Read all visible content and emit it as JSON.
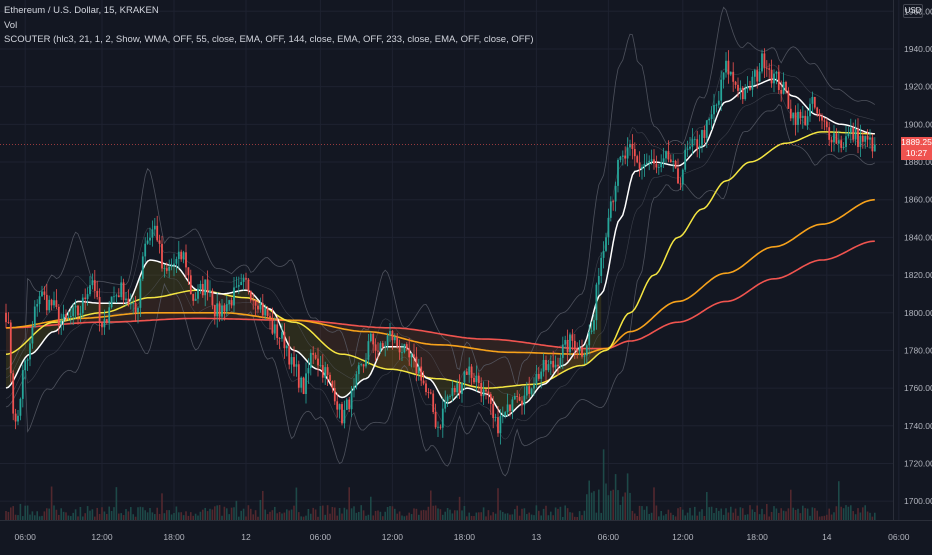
{
  "header": {
    "symbol_line": "Ethereum / U.S. Dollar, 15, KRAKEN",
    "indicator_vol": "Vol",
    "indicator_scouter": "SCOUTER (hlc3, 21, 1, 2, Show, WMA, OFF, 55, close, EMA, OFF, 144, close, EMA, OFF, 233, close, EMA, OFF, close, OFF)"
  },
  "currency_button": "USD",
  "last_price": {
    "value": "1889.25",
    "countdown": "10:27",
    "color": "#ef5350"
  },
  "colors": {
    "background": "#131722",
    "grid": "#1e2230",
    "bull": "#26a69a",
    "bear": "#ef5350",
    "wma": "#ffffff",
    "ema55": "#f5e642",
    "ema144": "#f7a21b",
    "ema233": "#f0544f",
    "band": "#5d606b"
  },
  "chart_data": {
    "type": "candlestick",
    "y_ticks": [
      "1960.00",
      "1940.00",
      "1920.00",
      "1900.00",
      "1880.00",
      "1860.00",
      "1840.00",
      "1820.00",
      "1800.00",
      "1780.00",
      "1760.00",
      "1740.00",
      "1720.00",
      "1700.00"
    ],
    "ylim": [
      1690,
      1966
    ],
    "x_ticks": [
      {
        "label": "06:00",
        "bar": 8
      },
      {
        "label": "12:00",
        "bar": 40
      },
      {
        "label": "18:00",
        "bar": 70
      },
      {
        "label": "12",
        "bar": 100
      },
      {
        "label": "06:00",
        "bar": 131
      },
      {
        "label": "12:00",
        "bar": 161
      },
      {
        "label": "18:00",
        "bar": 191
      },
      {
        "label": "13",
        "bar": 221
      },
      {
        "label": "06:00",
        "bar": 251
      },
      {
        "label": "12:00",
        "bar": 282
      },
      {
        "label": "18:00",
        "bar": 313
      },
      {
        "label": "14",
        "bar": 342
      },
      {
        "label": "06:00",
        "bar": 372
      }
    ],
    "bar_count": 400,
    "close_keys": [
      [
        0,
        1800
      ],
      [
        4,
        1740
      ],
      [
        8,
        1772
      ],
      [
        14,
        1810
      ],
      [
        18,
        1805
      ],
      [
        24,
        1795
      ],
      [
        30,
        1800
      ],
      [
        36,
        1818
      ],
      [
        40,
        1790
      ],
      [
        44,
        1808
      ],
      [
        48,
        1812
      ],
      [
        54,
        1800
      ],
      [
        58,
        1838
      ],
      [
        62,
        1845
      ],
      [
        66,
        1820
      ],
      [
        70,
        1826
      ],
      [
        74,
        1830
      ],
      [
        78,
        1808
      ],
      [
        84,
        1815
      ],
      [
        88,
        1800
      ],
      [
        92,
        1805
      ],
      [
        96,
        1810
      ],
      [
        100,
        1815
      ],
      [
        104,
        1808
      ],
      [
        108,
        1800
      ],
      [
        112,
        1790
      ],
      [
        116,
        1785
      ],
      [
        120,
        1770
      ],
      [
        124,
        1760
      ],
      [
        128,
        1780
      ],
      [
        132,
        1770
      ],
      [
        136,
        1760
      ],
      [
        140,
        1745
      ],
      [
        144,
        1755
      ],
      [
        148,
        1770
      ],
      [
        152,
        1785
      ],
      [
        156,
        1780
      ],
      [
        160,
        1788
      ],
      [
        164,
        1782
      ],
      [
        168,
        1775
      ],
      [
        172,
        1770
      ],
      [
        176,
        1755
      ],
      [
        180,
        1740
      ],
      [
        184,
        1755
      ],
      [
        188,
        1760
      ],
      [
        192,
        1770
      ],
      [
        196,
        1765
      ],
      [
        200,
        1755
      ],
      [
        204,
        1740
      ],
      [
        208,
        1745
      ],
      [
        212,
        1760
      ],
      [
        216,
        1755
      ],
      [
        220,
        1765
      ],
      [
        224,
        1770
      ],
      [
        228,
        1772
      ],
      [
        232,
        1780
      ],
      [
        236,
        1785
      ],
      [
        240,
        1780
      ],
      [
        244,
        1790
      ],
      [
        248,
        1830
      ],
      [
        252,
        1860
      ],
      [
        256,
        1880
      ],
      [
        260,
        1885
      ],
      [
        264,
        1878
      ],
      [
        268,
        1880
      ],
      [
        272,
        1875
      ],
      [
        276,
        1882
      ],
      [
        280,
        1870
      ],
      [
        284,
        1885
      ],
      [
        288,
        1890
      ],
      [
        292,
        1898
      ],
      [
        296,
        1910
      ],
      [
        300,
        1930
      ],
      [
        304,
        1922
      ],
      [
        308,
        1915
      ],
      [
        312,
        1925
      ],
      [
        316,
        1935
      ],
      [
        320,
        1925
      ],
      [
        324,
        1918
      ],
      [
        328,
        1905
      ],
      [
        332,
        1902
      ],
      [
        336,
        1910
      ],
      [
        340,
        1900
      ],
      [
        344,
        1895
      ],
      [
        348,
        1890
      ],
      [
        352,
        1895
      ],
      [
        356,
        1892
      ],
      [
        360,
        1890
      ],
      [
        362,
        1889.25
      ]
    ],
    "wma_keys": [
      [
        0,
        1760
      ],
      [
        10,
        1778
      ],
      [
        20,
        1790
      ],
      [
        30,
        1806
      ],
      [
        40,
        1805
      ],
      [
        50,
        1805
      ],
      [
        60,
        1828
      ],
      [
        70,
        1825
      ],
      [
        80,
        1812
      ],
      [
        90,
        1810
      ],
      [
        100,
        1812
      ],
      [
        110,
        1802
      ],
      [
        120,
        1780
      ],
      [
        130,
        1770
      ],
      [
        140,
        1755
      ],
      [
        150,
        1765
      ],
      [
        158,
        1782
      ],
      [
        166,
        1782
      ],
      [
        176,
        1765
      ],
      [
        184,
        1752
      ],
      [
        192,
        1760
      ],
      [
        200,
        1757
      ],
      [
        208,
        1745
      ],
      [
        216,
        1752
      ],
      [
        224,
        1762
      ],
      [
        232,
        1772
      ],
      [
        240,
        1782
      ],
      [
        248,
        1810
      ],
      [
        256,
        1850
      ],
      [
        262,
        1875
      ],
      [
        270,
        1880
      ],
      [
        280,
        1878
      ],
      [
        290,
        1888
      ],
      [
        300,
        1912
      ],
      [
        310,
        1920
      ],
      [
        320,
        1924
      ],
      [
        328,
        1915
      ],
      [
        338,
        1905
      ],
      [
        348,
        1900
      ],
      [
        362,
        1895
      ]
    ],
    "ema55_keys": [
      [
        0,
        1778
      ],
      [
        20,
        1795
      ],
      [
        40,
        1800
      ],
      [
        60,
        1808
      ],
      [
        80,
        1812
      ],
      [
        100,
        1808
      ],
      [
        120,
        1795
      ],
      [
        140,
        1778
      ],
      [
        160,
        1770
      ],
      [
        180,
        1765
      ],
      [
        200,
        1760
      ],
      [
        220,
        1762
      ],
      [
        240,
        1772
      ],
      [
        250,
        1780
      ],
      [
        260,
        1800
      ],
      [
        270,
        1820
      ],
      [
        280,
        1840
      ],
      [
        290,
        1855
      ],
      [
        300,
        1870
      ],
      [
        310,
        1880
      ],
      [
        325,
        1890
      ],
      [
        340,
        1896
      ],
      [
        362,
        1895
      ]
    ],
    "ema144_keys": [
      [
        0,
        1792
      ],
      [
        30,
        1797
      ],
      [
        60,
        1800
      ],
      [
        90,
        1800
      ],
      [
        120,
        1796
      ],
      [
        150,
        1790
      ],
      [
        180,
        1783
      ],
      [
        210,
        1779
      ],
      [
        240,
        1778
      ],
      [
        250,
        1781
      ],
      [
        260,
        1790
      ],
      [
        280,
        1806
      ],
      [
        300,
        1821
      ],
      [
        320,
        1835
      ],
      [
        340,
        1847
      ],
      [
        362,
        1860
      ]
    ],
    "ema233_keys": [
      [
        0,
        1792
      ],
      [
        40,
        1795
      ],
      [
        80,
        1797
      ],
      [
        120,
        1796
      ],
      [
        160,
        1792
      ],
      [
        200,
        1786
      ],
      [
        240,
        1781
      ],
      [
        250,
        1781
      ],
      [
        260,
        1785
      ],
      [
        280,
        1795
      ],
      [
        300,
        1806
      ],
      [
        320,
        1818
      ],
      [
        340,
        1828
      ],
      [
        362,
        1838
      ]
    ]
  }
}
